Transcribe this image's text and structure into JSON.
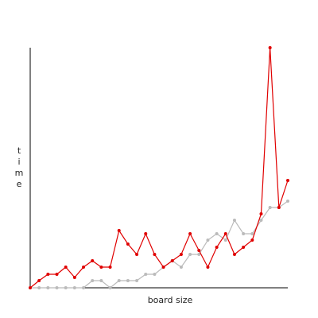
{
  "chart_data": {
    "type": "line",
    "x_label": "board size",
    "y_label": "time",
    "x": [
      0,
      1,
      2,
      3,
      4,
      5,
      6,
      7,
      8,
      9,
      10,
      11,
      12,
      13,
      14,
      15,
      16,
      17,
      18,
      19,
      20,
      21,
      22,
      23,
      24,
      25,
      26,
      27,
      28,
      29
    ],
    "xlim": [
      0,
      29
    ],
    "ylim": [
      0,
      302
    ],
    "series": [
      {
        "name": "gray",
        "color": "#bbbbbb",
        "values": [
          0,
          0,
          0,
          0,
          0,
          0,
          0,
          9,
          9,
          0,
          9,
          9,
          9,
          17,
          17,
          26,
          34,
          26,
          42,
          42,
          60,
          68,
          60,
          85,
          68,
          68,
          85,
          101,
          101,
          109
        ]
      },
      {
        "name": "red",
        "color": "#e00000",
        "values": [
          0,
          9,
          17,
          17,
          26,
          13,
          26,
          34,
          26,
          26,
          72,
          55,
          42,
          68,
          42,
          26,
          34,
          42,
          68,
          47,
          26,
          51,
          68,
          42,
          51,
          60,
          93,
          302,
          101,
          135
        ]
      }
    ]
  }
}
